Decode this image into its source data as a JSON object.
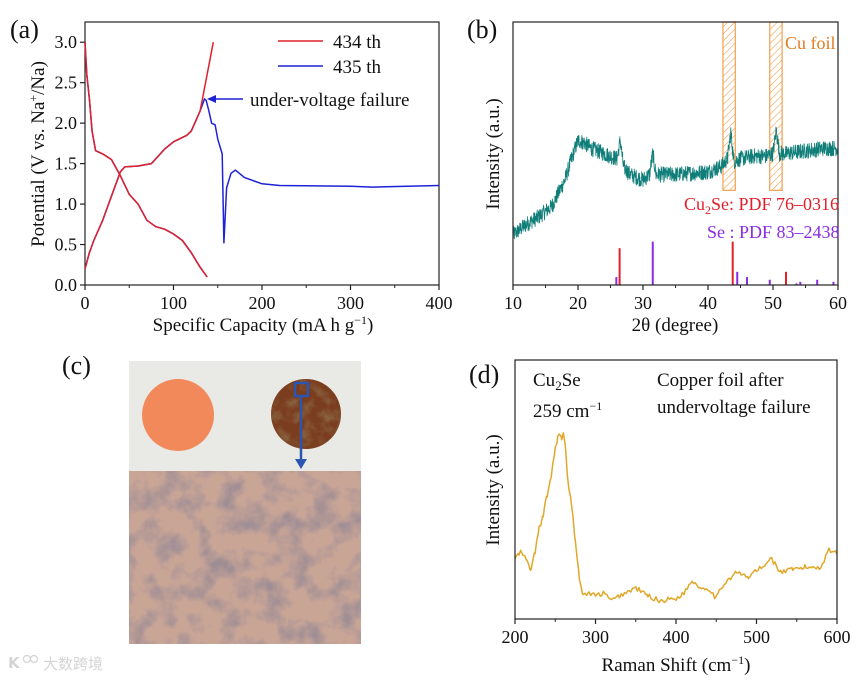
{
  "watermark": {
    "text": "大数跨境",
    "logo": "K"
  },
  "colors": {
    "red": "#e0202a",
    "blue": "#1d22d6",
    "teal": "#0f7d78",
    "cu_box": "#f0a050",
    "cu_text": "#e07b20",
    "purple": "#8a2be2",
    "raman": "#e0a82a",
    "arrow_c": "#2a55b0"
  },
  "chart_data": [
    {
      "id": "a",
      "panel_label": "(a)",
      "type": "line",
      "xlabel": "Specific Capacity (mA h g",
      "xlabel_sup": "−1",
      "xlabel_end": ")",
      "ylabel": "Potential (V vs. Na",
      "ylabel_sup": "+",
      "ylabel_end": "/Na)",
      "xlim": [
        0,
        400
      ],
      "ylim": [
        0,
        3.25
      ],
      "xticks": [
        "0",
        "100",
        "200",
        "300",
        "400"
      ],
      "yticks": [
        "0.0",
        "0.5",
        "1.0",
        "1.5",
        "2.0",
        "2.5",
        "3.0"
      ],
      "legend": [
        "434 th",
        "435 th"
      ],
      "annotation": "under-voltage failure",
      "series": [
        {
          "name": "435 th",
          "color": "#1d22d6",
          "x": [
            0,
            2,
            5,
            8,
            12,
            20,
            30,
            40,
            50,
            60,
            70,
            80,
            90,
            100,
            110,
            120,
            130,
            138
          ],
          "y": [
            3.0,
            2.6,
            2.3,
            1.9,
            1.66,
            1.62,
            1.55,
            1.35,
            1.12,
            1.0,
            0.8,
            0.72,
            0.69,
            0.63,
            0.55,
            0.4,
            0.22,
            0.1
          ]
        },
        {
          "name": "435 th charge",
          "color": "#1d22d6",
          "x": [
            0,
            5,
            10,
            20,
            30,
            40,
            45,
            60,
            75,
            90,
            100,
            115,
            120,
            130,
            135,
            137,
            140,
            143,
            147,
            150,
            155,
            157,
            160,
            165,
            170,
            180,
            200,
            220,
            300,
            325,
            400
          ],
          "y": [
            0.2,
            0.4,
            0.55,
            0.8,
            1.1,
            1.4,
            1.46,
            1.47,
            1.5,
            1.68,
            1.77,
            1.85,
            1.9,
            2.15,
            2.3,
            2.28,
            2.15,
            2.0,
            1.98,
            1.8,
            1.62,
            0.52,
            1.2,
            1.38,
            1.42,
            1.33,
            1.25,
            1.23,
            1.22,
            1.21,
            1.23
          ]
        },
        {
          "name": "434 th",
          "color": "#e0202a",
          "x": [
            0,
            2,
            5,
            8,
            12,
            20,
            30,
            40,
            50,
            60,
            70,
            80,
            90,
            100,
            110,
            120,
            130,
            138
          ],
          "y": [
            3.0,
            2.6,
            2.3,
            1.9,
            1.66,
            1.62,
            1.55,
            1.35,
            1.12,
            1.0,
            0.8,
            0.72,
            0.69,
            0.63,
            0.55,
            0.4,
            0.22,
            0.1
          ]
        },
        {
          "name": "434 th charge",
          "color": "#e0202a",
          "x": [
            0,
            5,
            10,
            20,
            30,
            40,
            45,
            60,
            75,
            90,
            100,
            115,
            120,
            130,
            138,
            145
          ],
          "y": [
            0.2,
            0.4,
            0.55,
            0.8,
            1.1,
            1.4,
            1.46,
            1.47,
            1.5,
            1.68,
            1.77,
            1.85,
            1.9,
            2.15,
            2.6,
            3.0
          ]
        }
      ]
    },
    {
      "id": "b",
      "panel_label": "(b)",
      "type": "line",
      "xlabel": "2θ (degree)",
      "ylabel": "Intensity (a.u.)",
      "xlim": [
        10,
        60
      ],
      "ylim": [
        0,
        1
      ],
      "xticks": [
        "10",
        "20",
        "30",
        "40",
        "50",
        "60"
      ],
      "series": [
        {
          "name": "XRD",
          "color": "#0f7d78",
          "x": [
            10,
            12,
            14,
            16,
            18,
            19,
            20,
            21,
            22,
            24,
            26,
            26.5,
            27,
            28,
            30,
            31,
            31.5,
            32,
            35,
            40,
            42,
            43,
            43.5,
            44,
            45,
            47,
            49,
            50,
            50.5,
            51,
            52,
            55,
            58,
            60
          ],
          "y": [
            0.19,
            0.23,
            0.26,
            0.3,
            0.4,
            0.48,
            0.55,
            0.54,
            0.52,
            0.5,
            0.48,
            0.55,
            0.45,
            0.42,
            0.4,
            0.42,
            0.5,
            0.42,
            0.42,
            0.43,
            0.45,
            0.48,
            0.58,
            0.47,
            0.48,
            0.49,
            0.49,
            0.5,
            0.59,
            0.5,
            0.5,
            0.51,
            0.52,
            0.52
          ]
        }
      ],
      "cu_foil_regions": [
        [
          42.3,
          44.2
        ],
        [
          49.5,
          51.4
        ]
      ],
      "cu_foil_label": "Cu foil",
      "references": [
        {
          "label_pre": "Cu",
          "label_sub": "2",
          "label_post": "Se: PDF 76–0316",
          "color": "#e0202a",
          "peaks": [
            [
              26.4,
              0.14
            ],
            [
              43.8,
              0.165
            ],
            [
              52.0,
              0.05
            ]
          ]
        },
        {
          "label_pre": "Se : PDF 83–2438",
          "label_sub": "",
          "label_post": "",
          "color": "#8a2be2",
          "peaks": [
            [
              25.9,
              0.03
            ],
            [
              31.5,
              0.165
            ],
            [
              44.5,
              0.05
            ],
            [
              46.0,
              0.03
            ],
            [
              49.5,
              0.02
            ],
            [
              53.6,
              0.006
            ],
            [
              54.2,
              0.012
            ],
            [
              56.8,
              0.02
            ],
            [
              59.3,
              0.012
            ]
          ]
        }
      ]
    },
    {
      "id": "d",
      "panel_label": "(d)",
      "type": "line",
      "xlabel": "Raman Shift (cm",
      "xlabel_sup": "−1",
      "xlabel_end": ")",
      "ylabel": "Intensity (a.u.)",
      "xlim": [
        200,
        600
      ],
      "ylim": [
        0,
        1
      ],
      "xticks": [
        "200",
        "300",
        "400",
        "500",
        "600"
      ],
      "peak_label_pre": "Cu",
      "peak_label_sub": "2",
      "peak_label_post": "Se",
      "peak_value": "259 cm",
      "peak_value_sup": "−1",
      "note_line1": "Copper foil after",
      "note_line2": "undervoltage failure",
      "series": [
        {
          "name": "Raman",
          "color": "#e0a82a",
          "x": [
            200,
            205,
            208,
            215,
            220,
            225,
            230,
            235,
            240,
            245,
            250,
            253,
            255,
            258,
            260,
            263,
            265,
            270,
            275,
            280,
            285,
            290,
            300,
            310,
            320,
            330,
            350,
            365,
            380,
            400,
            410,
            420,
            430,
            440,
            450,
            460,
            475,
            490,
            500,
            510,
            517,
            530,
            545,
            560,
            580,
            590,
            600
          ],
          "y": [
            0.235,
            0.25,
            0.26,
            0.22,
            0.19,
            0.26,
            0.35,
            0.4,
            0.48,
            0.55,
            0.66,
            0.7,
            0.72,
            0.69,
            0.71,
            0.66,
            0.55,
            0.45,
            0.3,
            0.15,
            0.09,
            0.1,
            0.09,
            0.1,
            0.07,
            0.09,
            0.12,
            0.09,
            0.07,
            0.08,
            0.1,
            0.15,
            0.12,
            0.12,
            0.08,
            0.14,
            0.18,
            0.16,
            0.19,
            0.2,
            0.24,
            0.18,
            0.19,
            0.2,
            0.2,
            0.27,
            0.25
          ]
        }
      ]
    }
  ],
  "panel_c": {
    "panel_label": "(c)"
  }
}
